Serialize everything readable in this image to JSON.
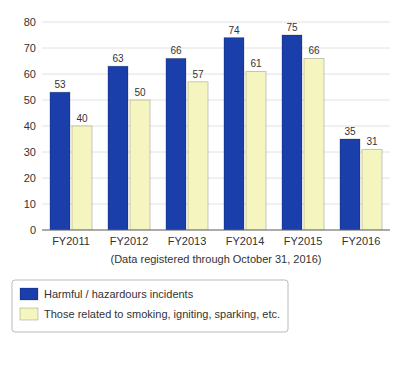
{
  "chart_data": {
    "type": "bar",
    "xlabel": "(Data registered through October 31, 2016)",
    "categories": [
      "FY2011",
      "FY2012",
      "FY2013",
      "FY2014",
      "FY2015",
      "FY2016"
    ],
    "series": [
      {
        "name": "Harmful / hazardours incidents",
        "color": "#1a3faa",
        "values": [
          53,
          63,
          66,
          74,
          75,
          35
        ]
      },
      {
        "name": "Those related to smoking, igniting, sparking, etc.",
        "color": "#f5f5c0",
        "values": [
          40,
          50,
          57,
          61,
          66,
          31
        ]
      }
    ],
    "ylim": [
      0,
      80
    ],
    "yticks": [
      0,
      10,
      20,
      30,
      40,
      50,
      60,
      70,
      80
    ],
    "grid": true,
    "data_labels": true,
    "legend": "bottom"
  }
}
